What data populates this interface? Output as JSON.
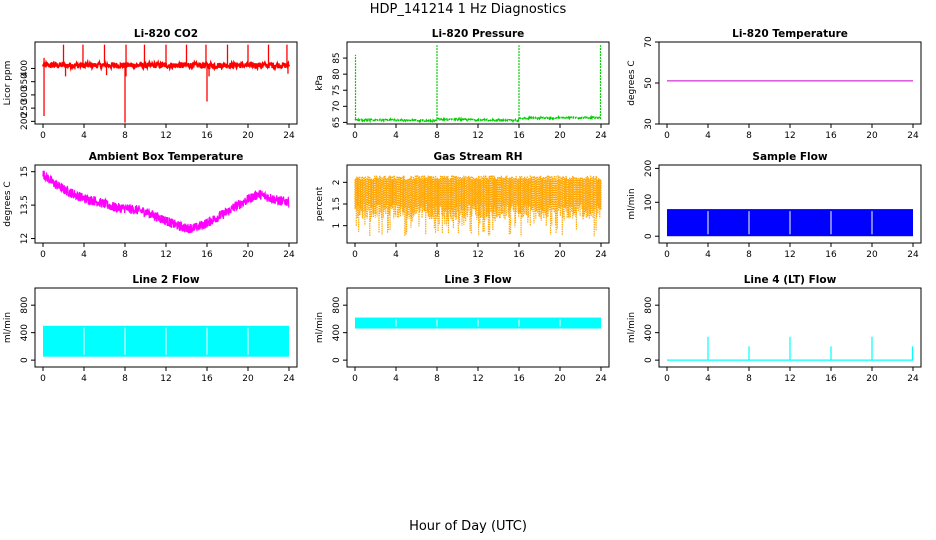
{
  "figure": {
    "title": "HDP_141214  1 Hz Diagnostics",
    "xlabel": "Hour of Day (UTC)"
  },
  "chart_data": [
    {
      "type": "line",
      "title": "Li-820 CO2",
      "ylabel": "Licor ppm",
      "color": "#ff0000",
      "xlim": [
        0,
        24
      ],
      "ylim": [
        190,
        500
      ],
      "xticks": [
        0,
        4,
        8,
        12,
        16,
        20,
        24
      ],
      "yticks": [
        200,
        250,
        300,
        350,
        400
      ],
      "baseline": 412,
      "spikes_up": [
        [
          0.1,
          440
        ],
        [
          2.0,
          490
        ],
        [
          3.9,
          490
        ],
        [
          6.0,
          490
        ],
        [
          8.1,
          490
        ],
        [
          9.9,
          490
        ],
        [
          12.0,
          490
        ],
        [
          14.0,
          490
        ],
        [
          15.9,
          490
        ],
        [
          18.0,
          490
        ],
        [
          20.0,
          490
        ],
        [
          22.0,
          490
        ],
        [
          23.8,
          490
        ]
      ],
      "spikes_down": [
        [
          0.1,
          220
        ],
        [
          8.0,
          195
        ],
        [
          16.0,
          275
        ],
        [
          8.1,
          370
        ],
        [
          2.2,
          370
        ],
        [
          6.2,
          375
        ],
        [
          16.2,
          370
        ],
        [
          23.9,
          380
        ]
      ]
    },
    {
      "type": "line",
      "title": "Li-820 Pressure",
      "ylabel": "kPa",
      "color": "#00cc00",
      "xlim": [
        0,
        24
      ],
      "ylim": [
        64.5,
        90
      ],
      "xticks": [
        0,
        4,
        8,
        12,
        16,
        20,
        24
      ],
      "yticks": [
        65,
        70,
        75,
        80,
        85
      ],
      "baseline": [
        [
          0,
          65.8
        ],
        [
          7.9,
          65.5
        ],
        [
          8.1,
          66.0
        ],
        [
          15.9,
          65.6
        ],
        [
          16.1,
          66.3
        ],
        [
          23.9,
          66.5
        ]
      ],
      "spikes_up": [
        [
          0.05,
          86
        ],
        [
          8.0,
          89
        ],
        [
          16.0,
          89
        ],
        [
          23.95,
          89
        ]
      ]
    },
    {
      "type": "line",
      "title": "Li-820 Temperature",
      "ylabel": "degrees C",
      "color": "#cc00cc",
      "xlim": [
        0,
        24
      ],
      "ylim": [
        30,
        70
      ],
      "xticks": [
        0,
        4,
        8,
        12,
        16,
        20,
        24
      ],
      "yticks": [
        30,
        50,
        70
      ],
      "x": [
        0,
        24
      ],
      "y": [
        51,
        51
      ]
    },
    {
      "type": "line",
      "title": "Ambient Box Temperature",
      "ylabel": "degrees C",
      "color": "#ff00ff",
      "xlim": [
        0,
        24
      ],
      "ylim": [
        11.8,
        15.3
      ],
      "xticks": [
        0,
        4,
        8,
        12,
        16,
        20,
        24
      ],
      "yticks": [
        12.0,
        13.5,
        15.0
      ],
      "x": [
        0,
        0.5,
        1,
        2,
        3,
        4,
        5,
        6,
        7,
        8,
        9,
        10,
        11,
        12,
        13,
        14,
        15,
        16,
        17,
        18,
        19,
        20,
        21,
        22,
        23,
        24
      ],
      "y": [
        14.9,
        14.7,
        14.5,
        14.2,
        14.0,
        13.8,
        13.7,
        13.55,
        13.4,
        13.35,
        13.3,
        13.2,
        13.0,
        12.8,
        12.6,
        12.45,
        12.5,
        12.7,
        12.95,
        13.2,
        13.5,
        13.75,
        14.0,
        13.85,
        13.7,
        13.65
      ],
      "noise": 0.22
    },
    {
      "type": "line",
      "title": "Gas Stream RH",
      "ylabel": "percent",
      "color": "#ffa500",
      "xlim": [
        0,
        24
      ],
      "ylim": [
        0.6,
        2.4
      ],
      "xticks": [
        0,
        4,
        8,
        12,
        16,
        20,
        24
      ],
      "yticks": [
        1.0,
        1.5,
        2.0
      ],
      "upper": 2.1,
      "lower_min": 0.75,
      "lower_typ": 1.5
    },
    {
      "type": "line",
      "title": "Sample Flow",
      "ylabel": "ml/min",
      "color": "#0000ff",
      "xlim": [
        0,
        24
      ],
      "ylim": [
        -20,
        210
      ],
      "xticks": [
        0,
        4,
        8,
        12,
        16,
        20,
        24
      ],
      "yticks": [
        0,
        100,
        200
      ],
      "band": [
        0,
        80
      ],
      "gaps": [
        4.0,
        8.0,
        12.0,
        16.0,
        20.0
      ]
    },
    {
      "type": "line",
      "title": "Line 2 Flow",
      "ylabel": "ml/min",
      "color": "#00ffff",
      "xlim": [
        0,
        24
      ],
      "ylim": [
        -100,
        1050
      ],
      "xticks": [
        0,
        4,
        8,
        12,
        16,
        20,
        24
      ],
      "yticks": [
        0,
        400,
        800
      ],
      "band": [
        50,
        500
      ],
      "gaps": [
        4.0,
        8.0,
        12.0,
        16.0,
        20.0
      ]
    },
    {
      "type": "line",
      "title": "Line 3 Flow",
      "ylabel": "ml/min",
      "color": "#00ffff",
      "xlim": [
        0,
        24
      ],
      "ylim": [
        -100,
        1050
      ],
      "xticks": [
        0,
        4,
        8,
        12,
        16,
        20,
        24
      ],
      "yticks": [
        0,
        400,
        800
      ],
      "band": [
        460,
        620
      ],
      "gaps": [
        4.0,
        8.0,
        12.0,
        16.0,
        20.0
      ]
    },
    {
      "type": "line",
      "title": "Line 4 (LT) Flow",
      "ylabel": "ml/min",
      "color": "#00ffff",
      "xlim": [
        0,
        24
      ],
      "ylim": [
        -100,
        1050
      ],
      "xticks": [
        0,
        4,
        8,
        12,
        16,
        20,
        24
      ],
      "yticks": [
        0,
        400,
        800
      ],
      "baseline": 0,
      "spikes_up": [
        [
          4.0,
          340
        ],
        [
          8.0,
          200
        ],
        [
          12.0,
          340
        ],
        [
          16.0,
          200
        ],
        [
          20.0,
          340
        ],
        [
          23.95,
          200
        ]
      ]
    }
  ]
}
